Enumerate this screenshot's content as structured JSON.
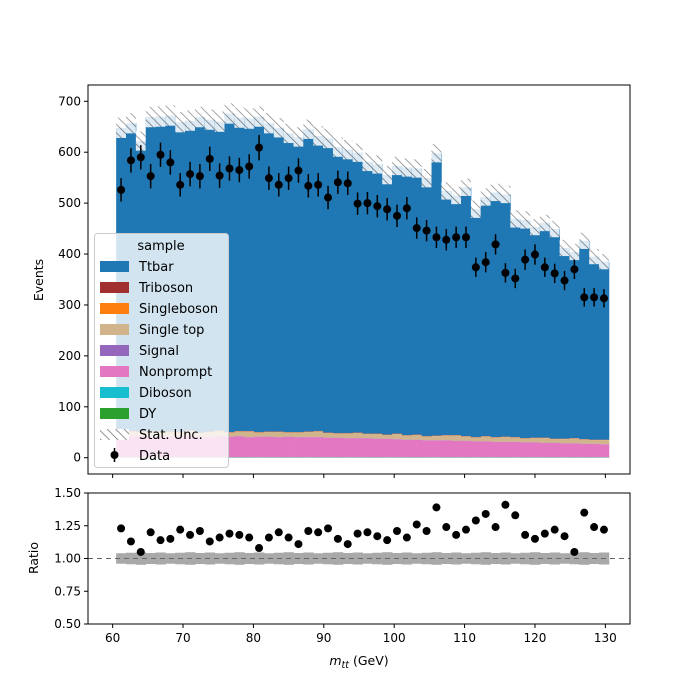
{
  "chart_data": {
    "type": "histogram",
    "x": {
      "label": "m",
      "label_subscript": "tt",
      "label_unit": " (GeV)",
      "range": [
        56.5,
        133.5
      ],
      "ticks": [
        60,
        70,
        80,
        90,
        100,
        110,
        120,
        130
      ],
      "bin_low": 60.5,
      "bin_width": 1.4,
      "n_bins": 50
    },
    "main_panel": {
      "ylabel": "Events",
      "ylim": [
        -32,
        732
      ],
      "yticks": [
        0,
        100,
        200,
        300,
        400,
        500,
        600,
        700
      ],
      "stack_order": [
        "DY",
        "Diboson",
        "Nonprompt",
        "Signal",
        "Single top",
        "Singleboson",
        "Triboson",
        "Ttbar"
      ],
      "stack_components": {
        "DY": [
          0.5,
          0.5,
          0.5,
          0.5,
          0.5,
          0.5,
          0.5,
          0.5,
          0.5,
          0.5,
          0.5,
          0.5,
          0.5,
          0.5,
          0.5,
          0.5,
          0.5,
          0.5,
          0.5,
          0.5,
          0.5,
          0.5,
          0.5,
          0.5,
          0.5,
          0.5,
          0.5,
          0.5,
          0.5,
          0.5,
          0.5,
          0.5,
          0.5,
          0.5,
          0.5,
          0.5,
          0.5,
          0.5,
          0.5,
          0.5,
          0.5,
          0.5,
          0.5,
          0.5,
          0.5,
          0.5,
          0.5,
          0.5,
          0.5,
          0.5
        ],
        "Diboson": [
          0.5,
          0.5,
          0.5,
          0.5,
          0.5,
          0.5,
          0.5,
          0.5,
          0.5,
          0.5,
          0.5,
          0.5,
          0.5,
          0.5,
          0.5,
          0.5,
          0.5,
          0.5,
          0.5,
          0.5,
          0.5,
          0.5,
          0.5,
          0.5,
          0.5,
          0.5,
          0.5,
          0.5,
          0.5,
          0.5,
          0.5,
          0.5,
          0.5,
          0.5,
          0.5,
          0.5,
          0.5,
          0.5,
          0.5,
          0.5,
          0.5,
          0.5,
          0.5,
          0.5,
          0.5,
          0.5,
          0.5,
          0.5,
          0.5,
          0.5
        ],
        "Nonprompt": [
          41,
          41,
          42,
          40,
          41,
          40,
          40,
          41,
          40,
          40,
          41,
          40,
          41,
          39,
          40,
          40,
          39,
          40,
          39,
          39,
          39,
          38,
          38,
          37,
          37,
          37,
          36,
          36,
          35,
          34,
          34,
          33,
          33,
          33,
          32,
          32,
          31,
          31,
          30,
          30,
          30,
          29,
          29,
          28,
          28,
          27,
          27,
          26,
          26,
          25
        ],
        "Signal": [
          0.5,
          0.5,
          0.5,
          0.5,
          0.5,
          0.5,
          0.5,
          0.5,
          0.5,
          0.5,
          0.5,
          0.5,
          0.5,
          0.5,
          0.5,
          0.5,
          0.5,
          0.5,
          0.5,
          0.5,
          0.5,
          0.5,
          0.5,
          0.5,
          0.5,
          0.5,
          0.5,
          0.5,
          0.5,
          0.5,
          0.5,
          0.5,
          0.5,
          0.5,
          0.5,
          0.5,
          0.5,
          0.5,
          0.5,
          0.5,
          0.5,
          0.5,
          0.5,
          0.5,
          0.5,
          0.5,
          0.5,
          0.5,
          0.5,
          0.5
        ],
        "Single top": [
          8,
          9,
          7,
          10,
          8,
          9,
          8,
          10,
          7,
          9,
          10,
          8,
          9,
          11,
          8,
          9,
          10,
          8,
          9,
          10,
          11,
          9,
          8,
          9,
          10,
          8,
          9,
          7,
          10,
          8,
          9,
          7,
          8,
          9,
          10,
          8,
          7,
          9,
          8,
          9,
          8,
          7,
          8,
          9,
          7,
          8,
          9,
          8,
          7,
          8
        ],
        "Singleboson": [
          0.5,
          0.5,
          0.5,
          0.5,
          0.5,
          0.5,
          0.5,
          0.5,
          0.5,
          0.5,
          0.5,
          0.5,
          0.5,
          0.5,
          0.5,
          0.5,
          0.5,
          0.5,
          0.5,
          0.5,
          0.5,
          0.5,
          0.5,
          0.5,
          0.5,
          0.5,
          0.5,
          0.5,
          0.5,
          0.5,
          0.5,
          0.5,
          0.5,
          0.5,
          0.5,
          0.5,
          0.5,
          0.5,
          0.5,
          0.5,
          0.5,
          0.5,
          0.5,
          0.5,
          0.5,
          0.5,
          0.5,
          0.5,
          0.5,
          0.5
        ],
        "Triboson": [
          0.5,
          0.5,
          0.5,
          0.5,
          0.5,
          0.5,
          0.5,
          0.5,
          0.5,
          0.5,
          0.5,
          0.5,
          0.5,
          0.5,
          0.5,
          0.5,
          0.5,
          0.5,
          0.5,
          0.5,
          0.5,
          0.5,
          0.5,
          0.5,
          0.5,
          0.5,
          0.5,
          0.5,
          0.5,
          0.5,
          0.5,
          0.5,
          0.5,
          0.5,
          0.5,
          0.5,
          0.5,
          0.5,
          0.5,
          0.5,
          0.5,
          0.5,
          0.5,
          0.5,
          0.5,
          0.5,
          0.5,
          0.5,
          0.5,
          0.5
        ]
      },
      "mc_total": [
        648,
        657,
        622,
        669,
        670,
        672,
        659,
        662,
        669,
        664,
        660,
        676,
        668,
        666,
        670,
        657,
        648,
        637,
        630,
        645,
        632,
        627,
        610,
        605,
        599,
        581,
        576,
        555,
        573,
        570,
        568,
        549,
        598,
        524,
        515,
        531,
        488,
        512,
        521,
        517,
        469,
        467,
        453,
        461,
        449,
        412,
        404,
        426,
        395,
        385
      ],
      "stat_unc": [
        20,
        20,
        19,
        20,
        20,
        20,
        20,
        20,
        20,
        20,
        20,
        20,
        20,
        20,
        20,
        20,
        19,
        19,
        19,
        19,
        19,
        19,
        19,
        19,
        18,
        18,
        18,
        18,
        18,
        18,
        18,
        18,
        18,
        17,
        17,
        17,
        17,
        17,
        17,
        17,
        17,
        17,
        16,
        16,
        16,
        16,
        16,
        16,
        15,
        15
      ],
      "data": [
        526,
        584,
        590,
        553,
        595,
        580,
        536,
        557,
        553,
        587,
        554,
        568,
        565,
        572,
        609,
        549,
        536,
        549,
        564,
        534,
        536,
        511,
        541,
        539,
        499,
        500,
        494,
        488,
        475,
        490,
        451,
        446,
        433,
        428,
        433,
        433,
        374,
        384,
        419,
        363,
        352,
        389,
        399,
        374,
        362,
        348,
        370,
        315,
        315,
        313
      ],
      "data_err": [
        23,
        24,
        24,
        24,
        24,
        24,
        23,
        24,
        24,
        24,
        24,
        24,
        24,
        24,
        25,
        23,
        23,
        23,
        24,
        23,
        23,
        23,
        23,
        23,
        22,
        22,
        22,
        22,
        22,
        22,
        21,
        21,
        21,
        21,
        21,
        21,
        19,
        20,
        20,
        19,
        19,
        20,
        20,
        19,
        19,
        19,
        19,
        18,
        18,
        18
      ]
    },
    "legend": {
      "title": "sample",
      "placement": "center-left",
      "entries": [
        {
          "label": "Ttbar",
          "color": "#1f77b4",
          "kind": "patch"
        },
        {
          "label": "Triboson",
          "color": "#a12f2f",
          "kind": "patch"
        },
        {
          "label": "Singleboson",
          "color": "#ff7f0e",
          "kind": "patch"
        },
        {
          "label": "Single top",
          "color": "#d2b48c",
          "kind": "patch"
        },
        {
          "label": "Signal",
          "color": "#9467bd",
          "kind": "patch"
        },
        {
          "label": "Nonprompt",
          "color": "#e377c2",
          "kind": "patch"
        },
        {
          "label": "Diboson",
          "color": "#17becf",
          "kind": "patch"
        },
        {
          "label": "DY",
          "color": "#2ca02c",
          "kind": "patch"
        },
        {
          "label": "Stat. Unc.",
          "color": "#555555",
          "kind": "hatch"
        },
        {
          "label": "Data",
          "color": "#000000",
          "kind": "errorbar"
        }
      ]
    },
    "ratio_panel": {
      "ylabel": "Ratio",
      "ylim": [
        0.5,
        1.5
      ],
      "yticks": [
        "0.50",
        "0.75",
        "1.00",
        "1.25",
        "1.50"
      ],
      "yticks_values": [
        0.5,
        0.75,
        1.0,
        1.25,
        1.5
      ],
      "reference_line": 1.0,
      "unc_band_halfwidth": 0.04,
      "ratio": [
        1.23,
        1.13,
        1.05,
        1.2,
        1.14,
        1.15,
        1.22,
        1.18,
        1.21,
        1.13,
        1.16,
        1.19,
        1.18,
        1.16,
        1.08,
        1.16,
        1.2,
        1.16,
        1.11,
        1.21,
        1.2,
        1.23,
        1.15,
        1.11,
        1.19,
        1.2,
        1.17,
        1.14,
        1.21,
        1.16,
        1.26,
        1.21,
        1.39,
        1.24,
        1.18,
        1.22,
        1.29,
        1.34,
        1.24,
        1.41,
        1.33,
        1.18,
        1.15,
        1.19,
        1.22,
        1.17,
        1.05,
        1.35,
        1.24,
        1.22
      ]
    }
  }
}
